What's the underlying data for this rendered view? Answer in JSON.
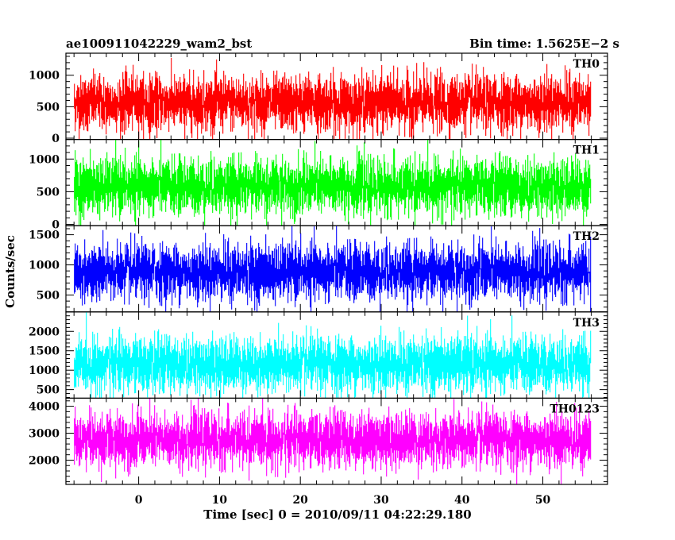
{
  "chart_data": {
    "type": "line",
    "title_left": "ae100911042229_wam2_bst",
    "title_right": "Bin time: 1.5625E−2 s",
    "xlabel": "Time [sec] 0 = 2010/09/11 04:22:29.180",
    "ylabel": "Counts/sec",
    "xlim": [
      -9,
      58
    ],
    "x_data_range": [
      -8,
      56
    ],
    "bin_time": 0.015625,
    "x_ticks": [
      0,
      10,
      20,
      30,
      40,
      50
    ],
    "x_tick_labels": [
      "0",
      "10",
      "20",
      "30",
      "40",
      "50"
    ],
    "grid": false,
    "panels": [
      {
        "label": "TH0",
        "color": "#ff0000",
        "ylim": [
          -20,
          1350
        ],
        "y_ticks": [
          0,
          500,
          1000
        ],
        "y_tick_labels": [
          "0",
          "500",
          "1000"
        ],
        "mean": 560,
        "typical_min": 40,
        "typical_max": 1150
      },
      {
        "label": "TH1",
        "color": "#00ff00",
        "ylim": [
          -20,
          1300
        ],
        "y_ticks": [
          0,
          500,
          1000
        ],
        "y_tick_labels": [
          "0",
          "500",
          "1000"
        ],
        "mean": 580,
        "typical_min": 50,
        "typical_max": 1150
      },
      {
        "label": "TH2",
        "color": "#0000ff",
        "ylim": [
          220,
          1650
        ],
        "y_ticks": [
          500,
          1000,
          1500
        ],
        "y_tick_labels": [
          "500",
          "1000",
          "1500"
        ],
        "mean": 880,
        "typical_min": 330,
        "typical_max": 1500
      },
      {
        "label": "TH3",
        "color": "#00ffff",
        "ylim": [
          280,
          2500
        ],
        "y_ticks": [
          500,
          1000,
          1500,
          2000
        ],
        "y_tick_labels": [
          "500",
          "1000",
          "1500",
          "2000"
        ],
        "mean": 1150,
        "typical_min": 430,
        "typical_max": 2100
      },
      {
        "label": "TH0123",
        "color": "#ff00ff",
        "ylim": [
          1100,
          4300
        ],
        "y_ticks": [
          2000,
          3000,
          4000
        ],
        "y_tick_labels": [
          "2000",
          "3000",
          "4000"
        ],
        "mean": 2750,
        "typical_min": 1500,
        "typical_max": 4100
      }
    ]
  }
}
